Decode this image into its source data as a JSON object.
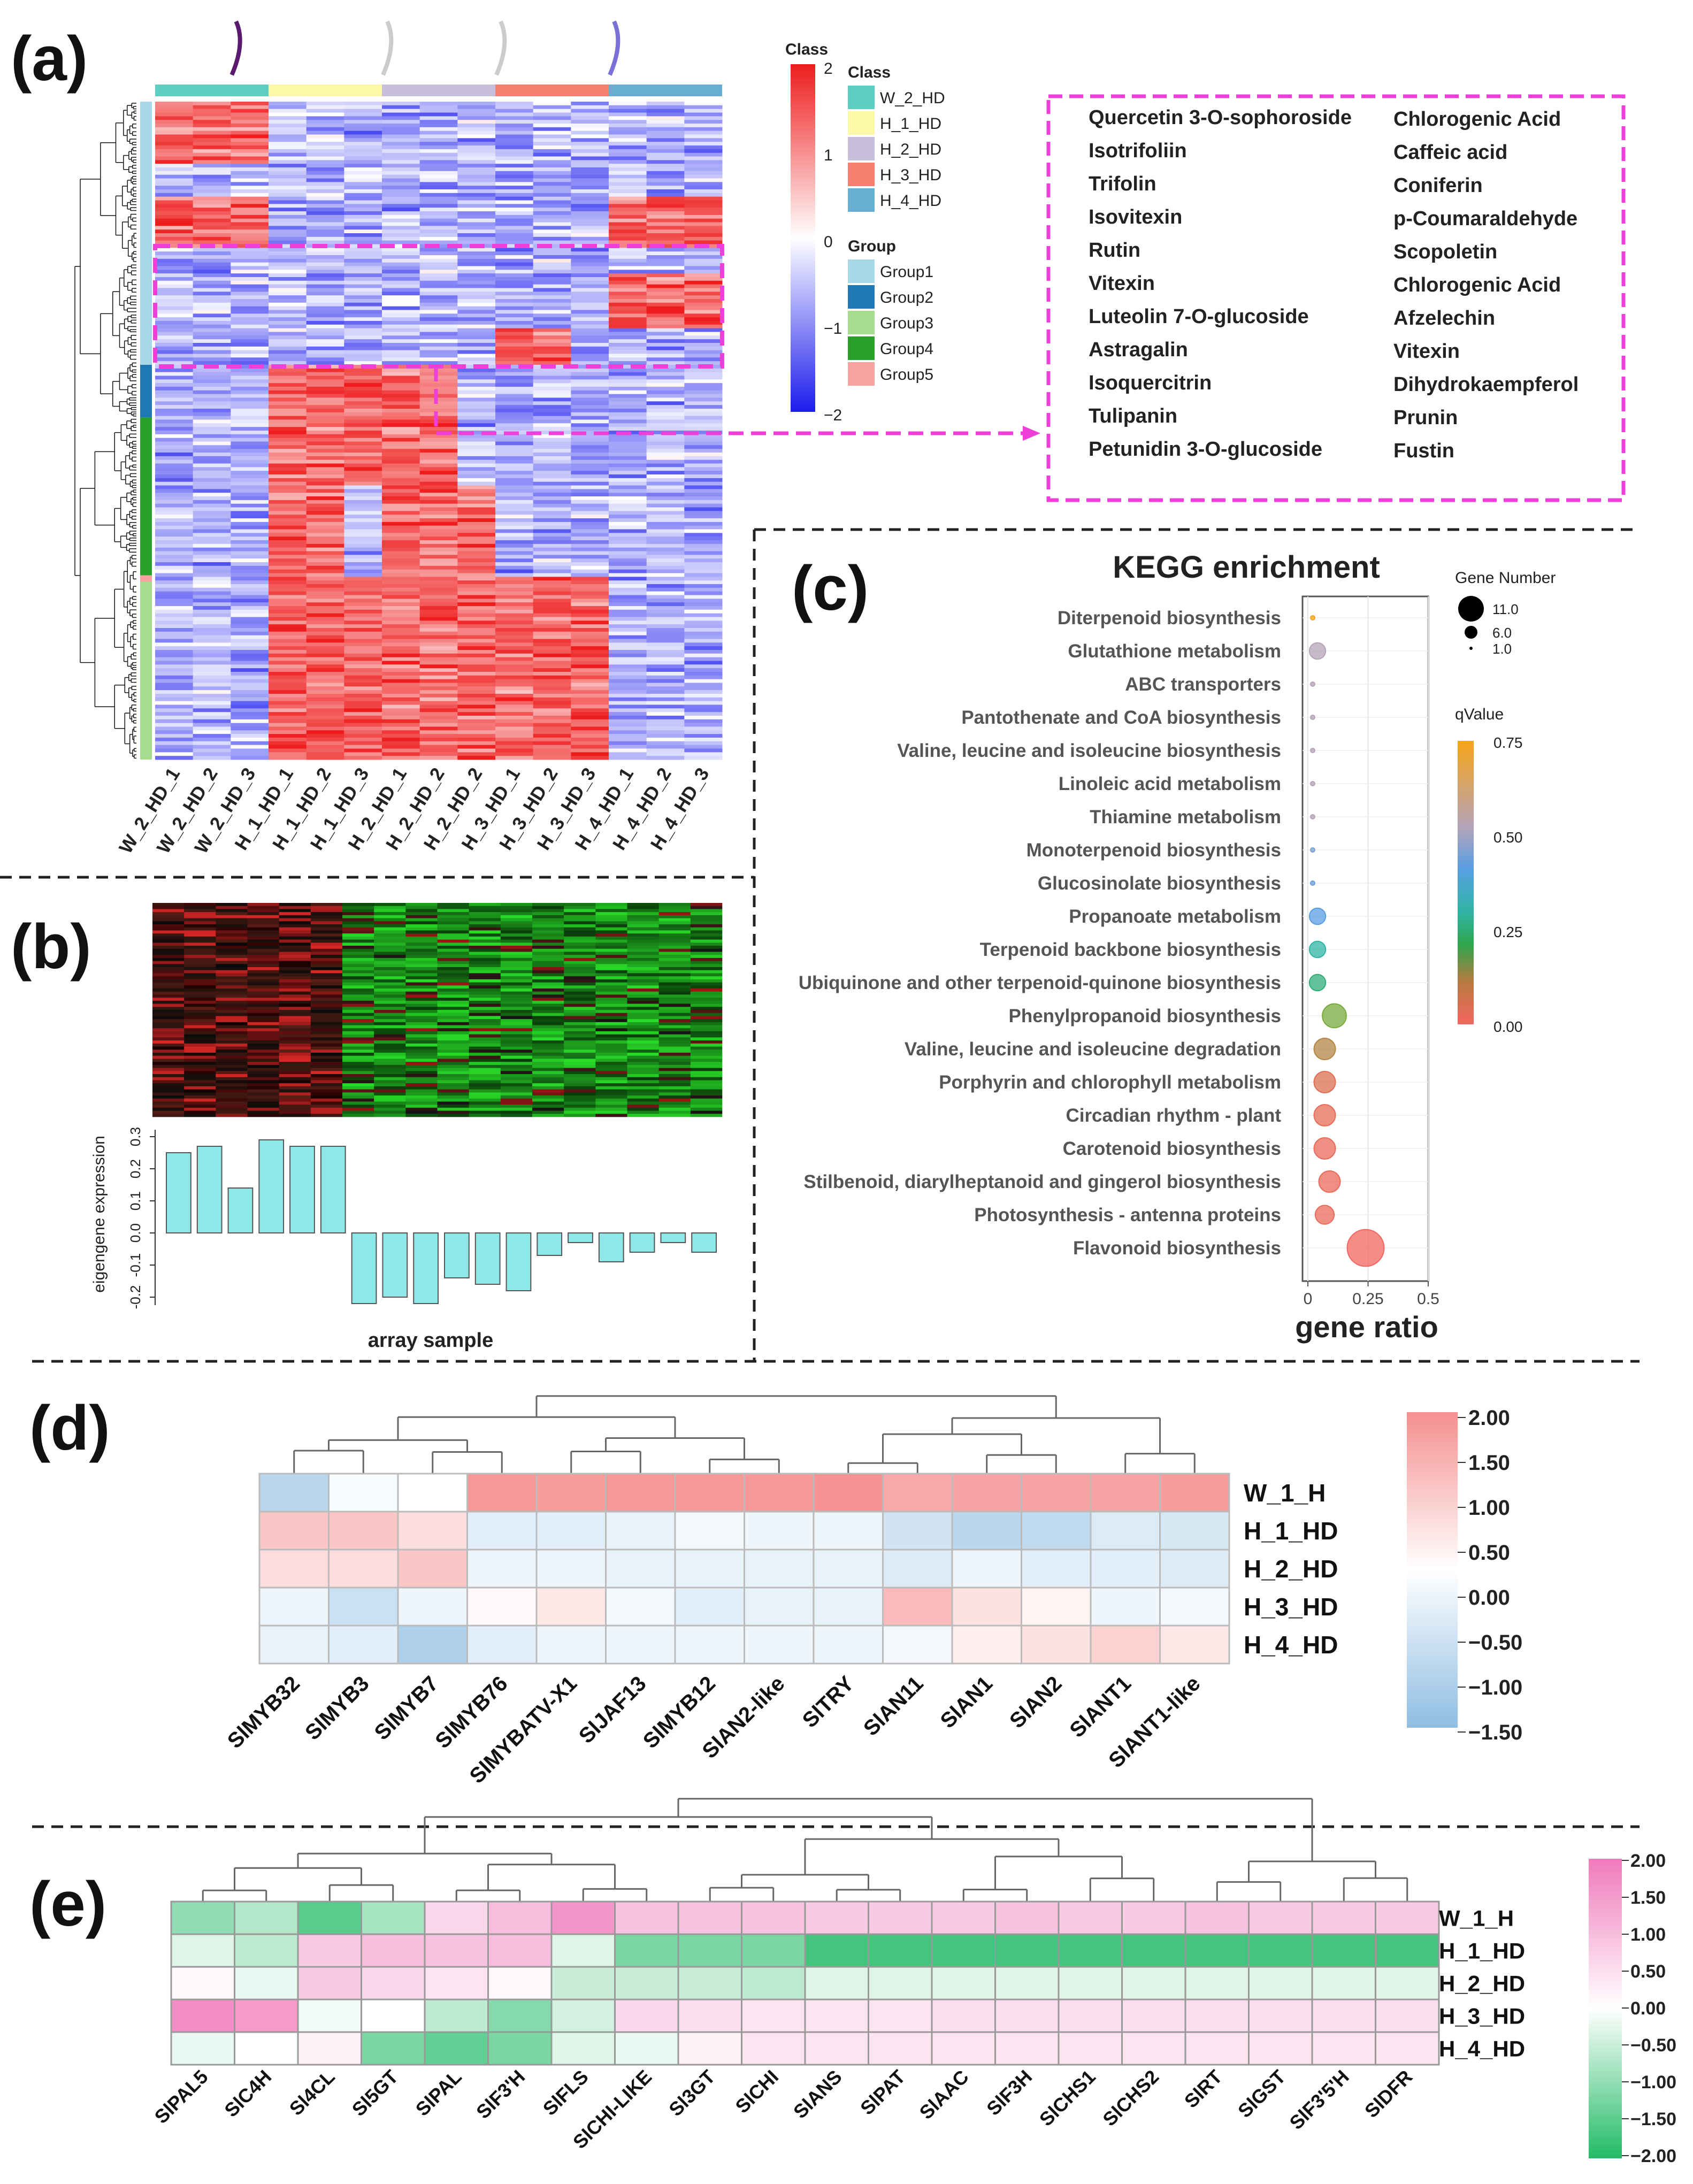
{
  "panels": {
    "a": "(a)",
    "b": "(b)",
    "c": "(c)",
    "d": "(d)",
    "e": "(e)"
  },
  "panel_a": {
    "samples": [
      "W_2_HD_1",
      "W_2_HD_2",
      "W_2_HD_3",
      "H_1_HD_1",
      "H_1_HD_2",
      "H_1_HD_3",
      "H_2_HD_1",
      "H_2_HD_2",
      "H_2_HD_2",
      "H_3_HD_1",
      "H_3_HD_2",
      "H_3_HD_3",
      "H_4_HD_1",
      "H_4_HD_2",
      "H_4_HD_3"
    ],
    "class_colors": [
      "#5ccfc2",
      "#fdf8a8",
      "#c7bedc",
      "#f67f70",
      "#66aed2"
    ],
    "colorbar_title": "Class",
    "colorbar_ticks": [
      "2",
      "1",
      "0",
      "−1",
      "−2"
    ],
    "legend_class_title": "Class",
    "legend_class": [
      {
        "label": "W_2_HD",
        "color": "#5ccfc2"
      },
      {
        "label": "H_1_HD",
        "color": "#fdf8a8"
      },
      {
        "label": "H_2_HD",
        "color": "#c7bedc"
      },
      {
        "label": "H_3_HD",
        "color": "#f67f70"
      },
      {
        "label": "H_4_HD",
        "color": "#66aed2"
      }
    ],
    "legend_group_title": "Group",
    "legend_group": [
      {
        "label": "Group1",
        "color": "#a7d8e8"
      },
      {
        "label": "Group2",
        "color": "#1f78b4"
      },
      {
        "label": "Group3",
        "color": "#a6dc8f"
      },
      {
        "label": "Group4",
        "color": "#2aa02a"
      },
      {
        "label": "Group5",
        "color": "#f7a1a1"
      }
    ],
    "compounds_left": [
      "Quercetin 3-O-sophoroside",
      "Isotrifoliin",
      "Trifolin",
      "Isovitexin",
      "Rutin",
      "Vitexin",
      "Luteolin 7-O-glucoside",
      "Astragalin",
      "Isoquercitrin",
      "Tulipanin",
      "Petunidin 3-O-glucoside"
    ],
    "compounds_right": [
      "Chlorogenic Acid",
      "Caffeic acid",
      "Coniferin",
      "p-Coumaraldehyde",
      "Scopoletin",
      "Chlorogenic Acid",
      "Afzelechin",
      "Vitexin",
      "Dihydrokaempferol",
      "Prunin",
      "Fustin"
    ]
  },
  "panel_b": {
    "ylabel": "eigengene expression",
    "xlabel": "array sample",
    "yticks": [
      "0.3",
      "0.2",
      "0.1",
      "0.0",
      "-0.1",
      "-0.2"
    ],
    "bar_color": "#8ee8e8",
    "eigengene": [
      0.25,
      0.27,
      0.14,
      0.29,
      0.27,
      0.27,
      -0.22,
      -0.2,
      -0.22,
      -0.14,
      -0.16,
      -0.18,
      -0.07,
      -0.03,
      -0.09,
      -0.06,
      -0.03,
      -0.06
    ]
  },
  "chart_data": {
    "type": "scatter",
    "title": "KEGG enrichment",
    "xlabel": "gene ratio",
    "xticks": [
      "0",
      "0.25",
      "0.5"
    ],
    "xlim": [
      0,
      0.5
    ],
    "size_legend_title": "Gene Number",
    "size_legend": [
      "11.0",
      "6.0",
      "1.0"
    ],
    "color_legend_title": "qValue",
    "color_legend_ticks": [
      "0.75",
      "0.50",
      "0.25",
      "0.00"
    ],
    "pathways": [
      {
        "name": "Diterpenoid biosynthesis",
        "gene_ratio": 0.02,
        "count": 1,
        "qvalue": 0.75
      },
      {
        "name": "Glutathione metabolism",
        "gene_ratio": 0.04,
        "count": 3,
        "qvalue": 0.5
      },
      {
        "name": "ABC transporters",
        "gene_ratio": 0.02,
        "count": 1,
        "qvalue": 0.5
      },
      {
        "name": "Pantothenate and CoA biosynthesis",
        "gene_ratio": 0.02,
        "count": 1,
        "qvalue": 0.5
      },
      {
        "name": "Valine, leucine and isoleucine biosynthesis",
        "gene_ratio": 0.02,
        "count": 1,
        "qvalue": 0.5
      },
      {
        "name": "Linoleic acid metabolism",
        "gene_ratio": 0.02,
        "count": 1,
        "qvalue": 0.5
      },
      {
        "name": "Thiamine metabolism",
        "gene_ratio": 0.02,
        "count": 1,
        "qvalue": 0.5
      },
      {
        "name": "Monoterpenoid biosynthesis",
        "gene_ratio": 0.02,
        "count": 1,
        "qvalue": 0.4
      },
      {
        "name": "Glucosinolate biosynthesis",
        "gene_ratio": 0.02,
        "count": 1,
        "qvalue": 0.38
      },
      {
        "name": "Propanoate metabolism",
        "gene_ratio": 0.04,
        "count": 3,
        "qvalue": 0.35
      },
      {
        "name": "Terpenoid backbone biosynthesis",
        "gene_ratio": 0.04,
        "count": 3,
        "qvalue": 0.28
      },
      {
        "name": "Ubiquinone and other terpenoid-quinone biosynthesis",
        "gene_ratio": 0.04,
        "count": 3,
        "qvalue": 0.25
      },
      {
        "name": "Phenylpropanoid biosynthesis",
        "gene_ratio": 0.11,
        "count": 6,
        "qvalue": 0.18
      },
      {
        "name": "Valine, leucine and isoleucine degradation",
        "gene_ratio": 0.07,
        "count": 5,
        "qvalue": 0.12
      },
      {
        "name": "Porphyrin and chlorophyll metabolism",
        "gene_ratio": 0.07,
        "count": 5,
        "qvalue": 0.05
      },
      {
        "name": "Circadian rhythm - plant",
        "gene_ratio": 0.07,
        "count": 5,
        "qvalue": 0.03
      },
      {
        "name": "Carotenoid biosynthesis",
        "gene_ratio": 0.07,
        "count": 5,
        "qvalue": 0.02
      },
      {
        "name": "Stilbenoid, diarylheptanoid and gingerol biosynthesis",
        "gene_ratio": 0.09,
        "count": 5,
        "qvalue": 0.02
      },
      {
        "name": "Photosynthesis - antenna proteins",
        "gene_ratio": 0.07,
        "count": 4,
        "qvalue": 0.02
      },
      {
        "name": "Flavonoid biosynthesis",
        "gene_ratio": 0.24,
        "count": 11,
        "qvalue": 0.0
      }
    ]
  },
  "panel_d": {
    "genes": [
      "SlMYB32",
      "SlMYB3",
      "SlMYB7",
      "SlMYB76",
      "SlMYBATV-X1",
      "SlJAF13",
      "SlMYB12",
      "SlAN2-like",
      "SlTRY",
      "SlAN11",
      "SlAN1",
      "SlAN2",
      "SlANT1",
      "SlANT1-like"
    ],
    "rows": [
      "W_1_H",
      "H_1_HD",
      "H_2_HD",
      "H_3_HD",
      "H_4_HD"
    ],
    "scale_ticks": [
      "2.00",
      "1.50",
      "1.00",
      "0.50",
      "0.00",
      "−0.50",
      "−1.00",
      "−1.50"
    ],
    "values": [
      [
        -1.2,
        -0.1,
        0.0,
        1.8,
        1.7,
        1.8,
        1.8,
        1.8,
        1.9,
        1.5,
        1.6,
        1.6,
        1.6,
        1.7
      ],
      [
        1.0,
        1.0,
        0.6,
        -0.5,
        -0.5,
        -0.4,
        -0.2,
        -0.3,
        -0.3,
        -0.8,
        -1.2,
        -1.1,
        -0.6,
        -0.7
      ],
      [
        0.6,
        0.6,
        1.0,
        -0.3,
        -0.3,
        -0.4,
        -0.4,
        -0.4,
        -0.4,
        -0.6,
        -0.3,
        -0.5,
        -0.5,
        -0.6
      ],
      [
        -0.3,
        -0.9,
        -0.3,
        0.1,
        0.4,
        -0.2,
        -0.5,
        -0.4,
        -0.4,
        1.2,
        0.5,
        0.2,
        -0.3,
        -0.2
      ],
      [
        -0.4,
        -0.5,
        -1.4,
        -0.5,
        -0.3,
        -0.3,
        -0.3,
        -0.3,
        -0.3,
        -0.2,
        0.3,
        0.5,
        0.8,
        0.4
      ]
    ]
  },
  "panel_e": {
    "genes": [
      "SlPAL5",
      "SlC4H",
      "Sl4CL",
      "Sl5GT",
      "SlPAL",
      "SlF3'H",
      "SlFLS",
      "SlCHI-LIKE",
      "Sl3GT",
      "SlCHI",
      "SlANS",
      "SlPAT",
      "SlAAC",
      "SlF3H",
      "SlCHS1",
      "SlCHS2",
      "SlRT",
      "SlGST",
      "SlF3'5'H",
      "SlDFR"
    ],
    "rows": [
      "W_1_H",
      "H_1_HD",
      "H_2_HD",
      "H_3_HD",
      "H_4_HD"
    ],
    "scale_ticks": [
      "2.00",
      "1.50",
      "1.00",
      "0.50",
      "0.00",
      "−0.50",
      "−1.00",
      "−1.50",
      "−2.00"
    ],
    "values": [
      [
        -1.0,
        -0.7,
        -1.5,
        -0.8,
        0.6,
        1.0,
        1.6,
        0.9,
        0.9,
        0.9,
        0.8,
        0.8,
        0.8,
        0.9,
        0.8,
        0.8,
        0.9,
        0.8,
        0.8,
        0.8
      ],
      [
        -0.3,
        -0.6,
        0.8,
        1.0,
        0.9,
        1.0,
        -0.3,
        -1.2,
        -1.2,
        -1.2,
        -1.7,
        -1.7,
        -1.7,
        -1.7,
        -1.7,
        -1.7,
        -1.7,
        -1.7,
        -1.7,
        -1.7
      ],
      [
        0.1,
        -0.2,
        0.8,
        0.6,
        0.4,
        0.1,
        -0.5,
        -0.5,
        -0.5,
        -0.6,
        -0.3,
        -0.3,
        -0.3,
        -0.3,
        -0.3,
        -0.3,
        -0.3,
        -0.3,
        -0.3,
        -0.3
      ],
      [
        1.7,
        1.5,
        -0.1,
        0.0,
        -0.6,
        -1.1,
        -0.4,
        0.6,
        0.5,
        0.4,
        0.4,
        0.4,
        0.5,
        0.5,
        0.5,
        0.5,
        0.5,
        0.5,
        0.5,
        0.5
      ],
      [
        -0.2,
        0.0,
        0.2,
        -1.2,
        -1.4,
        -1.2,
        -0.3,
        -0.2,
        0.2,
        0.4,
        0.4,
        0.4,
        0.4,
        0.4,
        0.4,
        0.4,
        0.4,
        0.4,
        0.4,
        0.4
      ]
    ]
  }
}
